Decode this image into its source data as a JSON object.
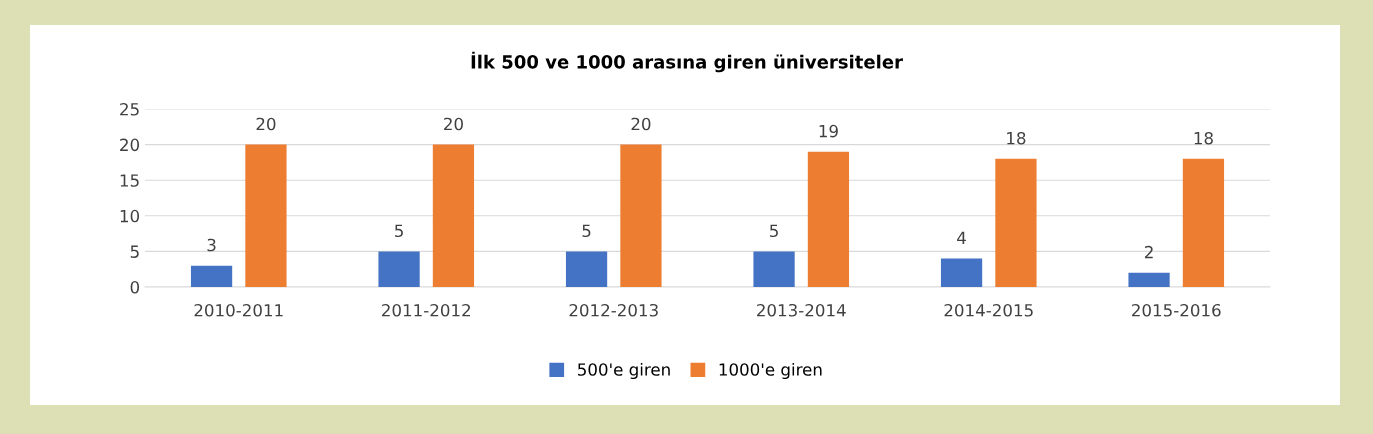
{
  "chart_data": {
    "type": "bar",
    "title": "İlk 500 ve 1000 arasına giren üniversiteler",
    "categories": [
      "2010-2011",
      "2011-2012",
      "2012-2013",
      "2013-2014",
      "2014-2015",
      "2015-2016"
    ],
    "series": [
      {
        "name": "500'e giren",
        "color": "#4472c4",
        "values": [
          3,
          5,
          5,
          5,
          4,
          2
        ]
      },
      {
        "name": "1000'e giren",
        "color": "#ed7d31",
        "values": [
          20,
          20,
          20,
          19,
          18,
          18
        ]
      }
    ],
    "ylim": [
      0,
      25
    ],
    "yticks": [
      0,
      5,
      10,
      15,
      20,
      25
    ],
    "grid": "y",
    "legend": "bottom",
    "data_labels": true
  }
}
